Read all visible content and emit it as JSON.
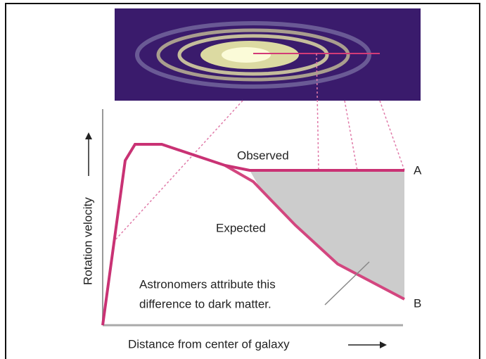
{
  "labels": {
    "observed": "Observed",
    "expected": "Expected",
    "point_a": "A",
    "point_b": "B",
    "annotation_line1": "Astronomers attribute this",
    "annotation_line2": "difference to dark matter.",
    "x_axis": "Distance from center of galaxy",
    "y_axis": "Rotation velocity"
  }
}
